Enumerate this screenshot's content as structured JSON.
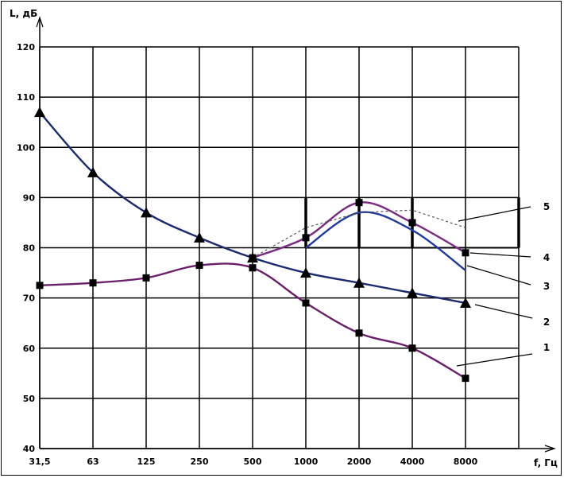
{
  "chart_data": {
    "type": "line",
    "title": "",
    "xlabel": "f, Гц",
    "ylabel": "L, дБ",
    "x_categories": [
      "31,5",
      "63",
      "125",
      "250",
      "500",
      "1000",
      "2000",
      "4000",
      "8000"
    ],
    "y_ticks": [
      "40",
      "50",
      "60",
      "70",
      "80",
      "90",
      "100",
      "110",
      "120"
    ],
    "ylim": [
      40,
      120
    ],
    "grid": true,
    "series": [
      {
        "name": "1",
        "color": "#6b1f6b",
        "marker": "square",
        "dash": false,
        "values": [
          72.5,
          73,
          74,
          76.5,
          76,
          69,
          63,
          60,
          54
        ]
      },
      {
        "name": "2",
        "color": "#1a2a6e",
        "marker": "triangle",
        "dash": false,
        "values": [
          107,
          95,
          87,
          82,
          78,
          75,
          73,
          71,
          69
        ]
      },
      {
        "name": "3",
        "color": "#1f3aa0",
        "marker": "none",
        "dash": false,
        "x_index": [
          5,
          6,
          7,
          8
        ],
        "values": [
          80,
          87,
          83.5,
          75.5
        ]
      },
      {
        "name": "4",
        "color": "#7a2a82",
        "marker": "square",
        "dash": false,
        "x_index": [
          4,
          5,
          6,
          7,
          8
        ],
        "values": [
          78,
          82,
          89,
          85,
          79
        ]
      },
      {
        "name": "5",
        "color": "#555555",
        "marker": "none",
        "dash": true,
        "x_index": [
          4,
          5,
          6,
          7,
          8
        ],
        "values": [
          78,
          84,
          87,
          87.5,
          84
        ]
      }
    ],
    "norm_band": {
      "level": 80,
      "x_start_index": 5,
      "x_end_extra": true,
      "bars_to": 90
    }
  }
}
